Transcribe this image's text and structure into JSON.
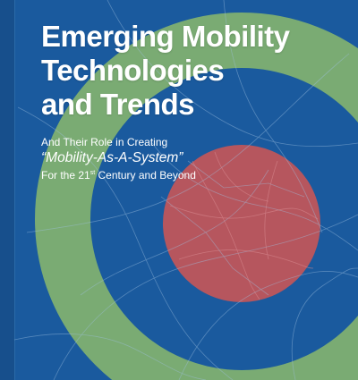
{
  "cover": {
    "title_line1": "Emerging Mobility",
    "title_line2": "Technologies",
    "title_line3": "and Trends",
    "subtitle_line1": "And Their Role in Creating",
    "subtitle_line2": "“Mobility-As-A-System”",
    "subtitle_line3_prefix": "For the 21",
    "subtitle_line3_sup": "st",
    "subtitle_line3_suffix": " Century and Beyond"
  },
  "colors": {
    "background": "#1a5a9e",
    "outer_ring": "#7fb071",
    "inner_circle": "#b6565e",
    "map_lines": "#9fc0e0",
    "text": "#ffffff"
  }
}
